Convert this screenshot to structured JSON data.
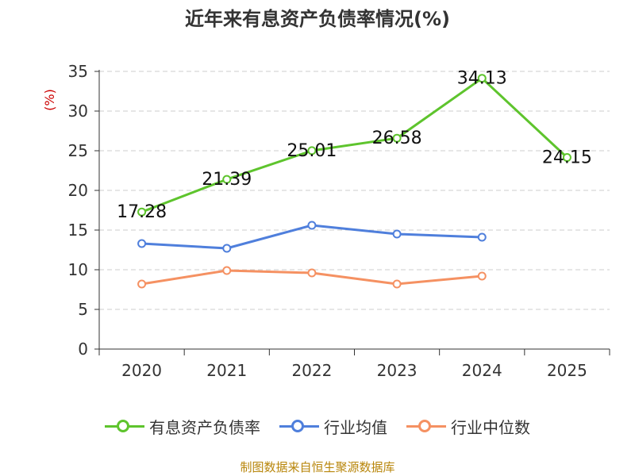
{
  "title": "近年来有息资产负债率情况(%)",
  "footer": "制图数据来自恒生聚源数据库",
  "chart_data": {
    "type": "line",
    "title": "近年来有息资产负债率情况(%)",
    "ylabel": "(%)",
    "xlabel": "",
    "categories": [
      "2020",
      "2021",
      "2022",
      "2023",
      "2024",
      "2025"
    ],
    "ylim": [
      0,
      35
    ],
    "yticks": [
      0,
      5,
      10,
      15,
      20,
      25,
      30,
      35
    ],
    "grid": true,
    "legend_position": "bottom",
    "series": [
      {
        "name": "有息资产负债率",
        "color": "#5ec42d",
        "values": [
          17.28,
          21.39,
          25.01,
          26.58,
          34.13,
          24.15
        ],
        "show_labels": true
      },
      {
        "name": "行业均值",
        "color": "#4f7fdc",
        "values": [
          13.3,
          12.7,
          15.6,
          14.5,
          14.1,
          null
        ],
        "show_labels": false
      },
      {
        "name": "行业中位数",
        "color": "#f59162",
        "values": [
          8.2,
          9.9,
          9.6,
          8.2,
          9.2,
          null
        ],
        "show_labels": false
      }
    ]
  }
}
